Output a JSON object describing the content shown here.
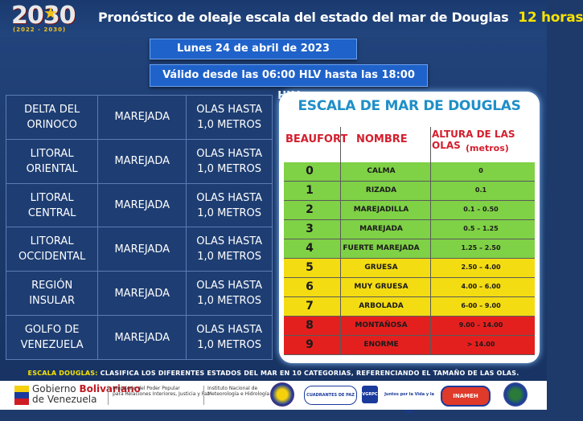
{
  "header": {
    "logo_year": "2030",
    "logo_range": "(2022 - 2030)",
    "title": "Pronóstico de oleaje escala del estado del mar de Douglas",
    "hours": "12 horas"
  },
  "date_line": "Lunes 24 de abril de 2023",
  "validity_line": "Válido desde las 06:00 HLV hasta las 18:00 HLV",
  "forecast": [
    {
      "region_l1": "DELTA DEL",
      "region_l2": "ORINOCO",
      "state": "MAREJADA",
      "waves_l1": "OLAS HASTA",
      "waves_l2": "1,0 METROS"
    },
    {
      "region_l1": "LITORAL",
      "region_l2": "ORIENTAL",
      "state": "MAREJADA",
      "waves_l1": "OLAS HASTA",
      "waves_l2": "1,0 METROS"
    },
    {
      "region_l1": "LITORAL",
      "region_l2": "CENTRAL",
      "state": "MAREJADA",
      "waves_l1": "OLAS HASTA",
      "waves_l2": "1,0 METROS"
    },
    {
      "region_l1": "LITORAL",
      "region_l2": "OCCIDENTAL",
      "state": "MAREJADA",
      "waves_l1": "OLAS HASTA",
      "waves_l2": "1,0 METROS"
    },
    {
      "region_l1": "REGIÓN",
      "region_l2": "INSULAR",
      "state": "MAREJADA",
      "waves_l1": "OLAS HASTA",
      "waves_l2": "1,0 METROS"
    },
    {
      "region_l1": "GOLFO DE",
      "region_l2": "VENEZUELA",
      "state": "MAREJADA",
      "waves_l1": "OLAS HASTA",
      "waves_l2": "1,0 METROS"
    }
  ],
  "scale": {
    "title": "ESCALA DE MAR DE DOUGLAS",
    "col_beaufort": "BEAUFORT",
    "col_nombre": "NOMBRE",
    "col_altura": "ALTURA DE LAS OLAS",
    "col_altura_unit": "(metros)",
    "rows": [
      {
        "b": "0",
        "n": "CALMA",
        "a": "0",
        "color": "#7fd146"
      },
      {
        "b": "1",
        "n": "RIZADA",
        "a": "0.1",
        "color": "#7fd146"
      },
      {
        "b": "2",
        "n": "MAREJADILLA",
        "a": "0.1 – 0.50",
        "color": "#7fd146"
      },
      {
        "b": "3",
        "n": "MAREJADA",
        "a": "0.5 – 1.25",
        "color": "#7fd146"
      },
      {
        "b": "4",
        "n": "FUERTE MAREJADA",
        "a": "1.25 – 2.50",
        "color": "#7fd146"
      },
      {
        "b": "5",
        "n": "GRUESA",
        "a": "2.50 – 4.00",
        "color": "#f4dc12"
      },
      {
        "b": "6",
        "n": "MUY GRUESA",
        "a": "4.00 – 6.00",
        "color": "#f4dc12"
      },
      {
        "b": "7",
        "n": "ARBOLADA",
        "a": "6-00 – 9.00",
        "color": "#f4dc12"
      },
      {
        "b": "8",
        "n": "MONTAÑOSA",
        "a": "9.00 – 14.00",
        "color": "#e4201f"
      },
      {
        "b": "9",
        "n": "ENORME",
        "a": "> 14.00",
        "color": "#e4201f"
      }
    ]
  },
  "note": {
    "key": "ESCALA DOUGLAS:",
    "text": "CLASIFICA LOS DIFERENTES  ESTADOS DEL MAR EN 10 CATEGORIAS,  REFERENCIANDO  EL TAMAÑO DE LAS OLAS."
  },
  "footer": {
    "gob_l1_a": "Gobierno ",
    "gob_l1_b": "Bolivariano",
    "gob_l2": "de Venezuela",
    "ministry_l1": "Ministerio del Poder Popular",
    "ministry_l2": "para Relaciones Interiores, Justicia y Paz",
    "inameh_l1": "Instituto Nacional de",
    "inameh_l2": "Meteorología e Hidrología",
    "cuadrantes": "CUADRANTES DE PAZ",
    "vgrpc": "VGRPC",
    "juntos": "Juntos por la Vida y la Paz",
    "inameh": "INAMEH"
  },
  "colors": {
    "accent_blue": "#1f62c9",
    "header_yellow": "#f7e200",
    "scale_red": "#d41e2d",
    "scale_title_blue": "#1f8fc8"
  }
}
